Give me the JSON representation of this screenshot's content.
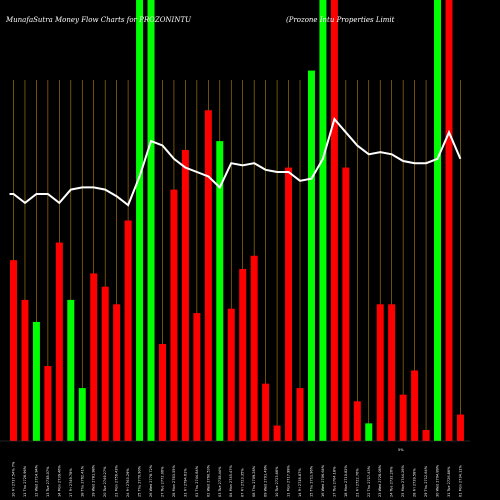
{
  "chart_data": {
    "type": "bar",
    "title_left": "MunafaSutra  Money Flow  Charts for PROZONINTU",
    "title_right": "(Prozone Intu Properties Limit",
    "colors": {
      "up": "#00ff00",
      "down": "#ff0000",
      "grid": "#b8860b",
      "line": "#ffffff",
      "background": "#000000"
    },
    "ylim": [
      0,
      100
    ],
    "x_labels": [
      "10 Fri 2717.54% 7%",
      "11 Thu 2726.96%",
      "12 Wed 2714.94%",
      "13 Tue 2738.07%",
      "14 Mon 2739.46%",
      "17 Fri 2749.78%",
      "18 Thu 2762.41%",
      "19 Wed 2781.98%",
      "20 Tue 2749.27%",
      "21 Mon 2756.43%",
      "24 Fri 2763.29%",
      "25 Thu 2770.90%",
      "26 Wed 2778.72%",
      "27 Tue 2772.06%",
      "28 Mon 2783.55%",
      "31 Fri 2794.61%",
      "01 Thu 2744.84%",
      "02 Wed 2760.53%",
      "03 Tue 2738.44%",
      "04 Mon 2745.47%",
      "07 Fri 2723.35%",
      "08 Thu 2709.28%",
      "09 Wed 2701.49%",
      "10 Tue 2723.66%",
      "11 Mon 2717.99%",
      "14 Fri 2718.87%",
      "15 Thu 2711.96%",
      "16 Wed 2706.64%",
      "17 Tue 2704.18%",
      "18 Mon 2710.82%",
      "21 Fri 2722.76%",
      "22 Thu 2717.43%",
      "23 Wed 2728.08%",
      "24 Tue 2732.26%",
      "25 Mon 2744.26%",
      "28 Fri 2739.58%",
      "29 Thu 2712.64%",
      "30 Wed 2704.89%",
      "31 Tue 2726.86%",
      "01 Mon 2734.11%"
    ],
    "x_extra_label": "5%",
    "bars": [
      {
        "value": 41,
        "color": "red"
      },
      {
        "value": 32,
        "color": "red"
      },
      {
        "value": 27,
        "color": "green"
      },
      {
        "value": 17,
        "color": "red"
      },
      {
        "value": 45,
        "color": "red"
      },
      {
        "value": 32,
        "color": "green"
      },
      {
        "value": 12,
        "color": "green"
      },
      {
        "value": 38,
        "color": "red"
      },
      {
        "value": 35,
        "color": "red"
      },
      {
        "value": 31,
        "color": "red"
      },
      {
        "value": 50,
        "color": "red"
      },
      {
        "value": 100,
        "color": "green"
      },
      {
        "value": 100,
        "color": "green"
      },
      {
        "value": 22,
        "color": "red"
      },
      {
        "value": 57,
        "color": "red"
      },
      {
        "value": 66,
        "color": "red"
      },
      {
        "value": 29,
        "color": "red"
      },
      {
        "value": 75,
        "color": "red"
      },
      {
        "value": 68,
        "color": "green"
      },
      {
        "value": 30,
        "color": "red"
      },
      {
        "value": 39,
        "color": "red"
      },
      {
        "value": 42,
        "color": "red"
      },
      {
        "value": 13,
        "color": "red"
      },
      {
        "value": 3.5,
        "color": "red"
      },
      {
        "value": 62,
        "color": "red"
      },
      {
        "value": 12,
        "color": "red"
      },
      {
        "value": 84,
        "color": "green"
      },
      {
        "value": 100,
        "color": "green"
      },
      {
        "value": 100,
        "color": "red"
      },
      {
        "value": 62,
        "color": "red"
      },
      {
        "value": 9,
        "color": "red"
      },
      {
        "value": 4,
        "color": "green"
      },
      {
        "value": 31,
        "color": "red"
      },
      {
        "value": 31,
        "color": "red"
      },
      {
        "value": 10.5,
        "color": "red"
      },
      {
        "value": 16,
        "color": "red"
      },
      {
        "value": 2.5,
        "color": "red"
      },
      {
        "value": 100,
        "color": "green"
      },
      {
        "value": 100,
        "color": "red"
      },
      {
        "value": 6,
        "color": "red"
      }
    ],
    "line_values": [
      56,
      54,
      56,
      56,
      54,
      57,
      57.5,
      57.5,
      57,
      55.5,
      53.5,
      60,
      68,
      67,
      64,
      62,
      61,
      60,
      57.5,
      63,
      62.5,
      63,
      61.5,
      61,
      61,
      59,
      59.5,
      64,
      73,
      70,
      67,
      65,
      65.5,
      65,
      63.5,
      63,
      63,
      64,
      70,
      64
    ]
  }
}
